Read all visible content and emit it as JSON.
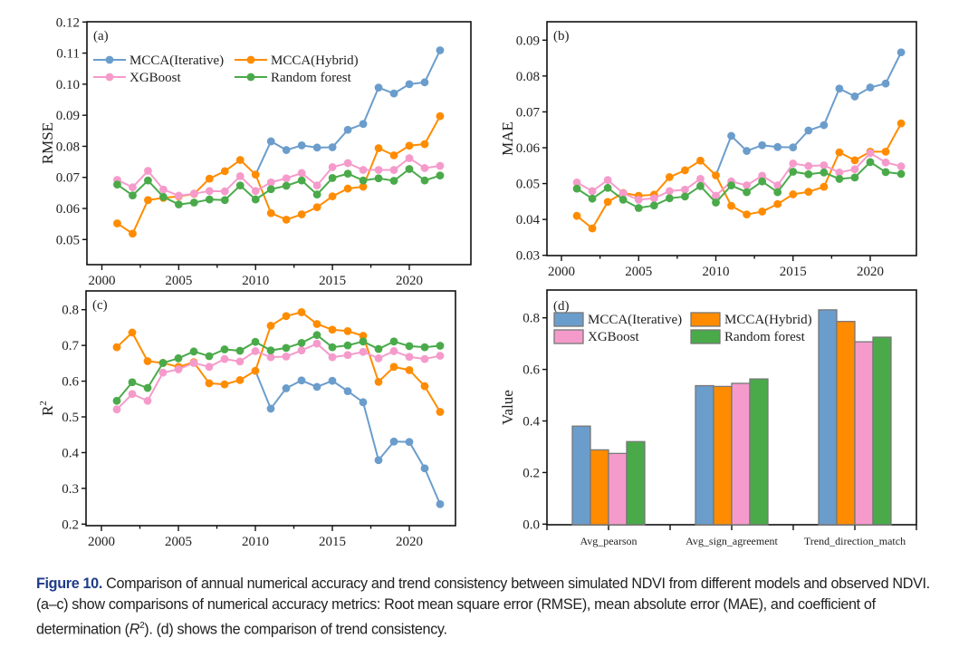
{
  "colors": {
    "MCCA(Iterative)": "#6b9dcc",
    "MCCA(Hybrid)": "#ff8c00",
    "XGBoost": "#f59bcb",
    "Random forest": "#4aaa4a"
  },
  "legend_order": [
    "MCCA(Iterative)",
    "MCCA(Hybrid)",
    "XGBoost",
    "Random forest"
  ],
  "caption": {
    "label": "Figure 10.",
    "text_1": " Comparison of annual numerical accuracy and trend consistency between simulated NDVI from different models and observed NDVI. (a–c) show comparisons of numerical accuracy metrics: Root mean square error (RMSE), mean absolute error (MAE), and coefficient of determination (",
    "r_symbol": "R",
    "r_sup": "2",
    "text_2": "). (d) shows the comparison of trend consistency."
  },
  "chart_data": [
    {
      "panel": "(a)",
      "type": "line",
      "title": "",
      "xlabel": "",
      "ylabel": "RMSE",
      "x": [
        2001,
        2002,
        2003,
        2004,
        2005,
        2006,
        2007,
        2008,
        2009,
        2010,
        2011,
        2012,
        2013,
        2014,
        2015,
        2016,
        2017,
        2018,
        2019,
        2020,
        2021,
        2022
      ],
      "xticks": [
        2000,
        2005,
        2010,
        2015,
        2020
      ],
      "xlim": [
        1999,
        2023.2
      ],
      "ylim": [
        0.045,
        0.12
      ],
      "yticks": [
        0.05,
        0.06,
        0.07,
        0.08,
        0.09,
        0.1,
        0.11,
        0.12
      ],
      "ytick_labels": [
        "0.05",
        "0.06",
        "0.07",
        "0.08",
        "0.09",
        "0.10",
        "0.11",
        "0.12"
      ],
      "legend": "top-left",
      "grid": false,
      "series": [
        {
          "name": "MCCA(Iterative)",
          "values": [
            0.0552,
            0.0519,
            0.0627,
            0.0634,
            0.0639,
            0.0647,
            0.0696,
            0.072,
            0.0756,
            0.0709,
            0.0816,
            0.0788,
            0.0803,
            0.0796,
            0.0797,
            0.0853,
            0.0872,
            0.0989,
            0.097,
            0.1,
            0.1006,
            0.1109
          ]
        },
        {
          "name": "MCCA(Hybrid)",
          "values": [
            0.0552,
            0.0519,
            0.0627,
            0.0634,
            0.0639,
            0.0647,
            0.0696,
            0.072,
            0.0756,
            0.0709,
            0.0585,
            0.0564,
            0.0581,
            0.0604,
            0.0639,
            0.0664,
            0.067,
            0.0794,
            0.0771,
            0.0802,
            0.0807,
            0.0897
          ]
        },
        {
          "name": "XGBoost",
          "values": [
            0.0692,
            0.0668,
            0.0721,
            0.0661,
            0.0641,
            0.0648,
            0.0656,
            0.0655,
            0.0704,
            0.0656,
            0.0684,
            0.0697,
            0.0714,
            0.0674,
            0.0733,
            0.0746,
            0.0724,
            0.0724,
            0.0724,
            0.0762,
            0.073,
            0.0737
          ]
        },
        {
          "name": "Random forest",
          "values": [
            0.0677,
            0.0642,
            0.069,
            0.0637,
            0.0613,
            0.0619,
            0.0629,
            0.0627,
            0.0674,
            0.0629,
            0.0662,
            0.0673,
            0.069,
            0.0645,
            0.0698,
            0.0712,
            0.069,
            0.0697,
            0.0689,
            0.0727,
            0.069,
            0.0706
          ]
        }
      ]
    },
    {
      "panel": "(b)",
      "type": "line",
      "title": "",
      "xlabel": "",
      "ylabel": "MAE",
      "x": [
        2001,
        2002,
        2003,
        2004,
        2005,
        2006,
        2007,
        2008,
        2009,
        2010,
        2011,
        2012,
        2013,
        2014,
        2015,
        2016,
        2017,
        2018,
        2019,
        2020,
        2021,
        2022
      ],
      "xticks": [
        2000,
        2005,
        2010,
        2015,
        2020
      ],
      "xlim": [
        1999,
        2023.2
      ],
      "ylim": [
        0.03,
        0.095
      ],
      "yticks": [
        0.03,
        0.04,
        0.05,
        0.06,
        0.07,
        0.08,
        0.09
      ],
      "ytick_labels": [
        "0.03",
        "0.04",
        "0.05",
        "0.06",
        "0.07",
        "0.08",
        "0.09"
      ],
      "legend": "none",
      "grid": false,
      "series": [
        {
          "name": "MCCA(Iterative)",
          "values": [
            0.041,
            0.0375,
            0.0449,
            0.0474,
            0.0466,
            0.0469,
            0.0518,
            0.0537,
            0.0564,
            0.0523,
            0.0633,
            0.0591,
            0.0607,
            0.0602,
            0.0601,
            0.0648,
            0.0663,
            0.0765,
            0.0743,
            0.0768,
            0.0779,
            0.0866
          ]
        },
        {
          "name": "MCCA(Hybrid)",
          "values": [
            0.041,
            0.0375,
            0.0449,
            0.0474,
            0.0466,
            0.0469,
            0.0518,
            0.0537,
            0.0564,
            0.0523,
            0.0438,
            0.0414,
            0.0422,
            0.0443,
            0.047,
            0.0477,
            0.0491,
            0.0587,
            0.0565,
            0.0589,
            0.0589,
            0.0668
          ]
        },
        {
          "name": "XGBoost",
          "values": [
            0.0503,
            0.0479,
            0.051,
            0.0473,
            0.0455,
            0.0459,
            0.0479,
            0.0483,
            0.0513,
            0.0466,
            0.0506,
            0.0495,
            0.0522,
            0.0495,
            0.0556,
            0.0549,
            0.0551,
            0.0531,
            0.054,
            0.0585,
            0.0559,
            0.0548
          ]
        },
        {
          "name": "Random forest",
          "values": [
            0.0486,
            0.0458,
            0.0488,
            0.0455,
            0.0432,
            0.0439,
            0.0459,
            0.0464,
            0.0493,
            0.0447,
            0.0495,
            0.0476,
            0.0506,
            0.0476,
            0.0533,
            0.0526,
            0.0531,
            0.0513,
            0.0517,
            0.056,
            0.0532,
            0.0527
          ]
        }
      ]
    },
    {
      "panel": "(c)",
      "type": "line",
      "title": "",
      "xlabel": "",
      "ylabel": "R2",
      "x": [
        2001,
        2002,
        2003,
        2004,
        2005,
        2006,
        2007,
        2008,
        2009,
        2010,
        2011,
        2012,
        2013,
        2014,
        2015,
        2016,
        2017,
        2018,
        2019,
        2020,
        2021,
        2022
      ],
      "xticks": [
        2000,
        2005,
        2010,
        2015,
        2020
      ],
      "xlim": [
        1999,
        2023.2
      ],
      "ylim": [
        0.2,
        0.85
      ],
      "yticks": [
        0.2,
        0.3,
        0.4,
        0.5,
        0.6,
        0.7,
        0.8
      ],
      "ytick_labels": [
        "0.2",
        "0.3",
        "0.4",
        "0.5",
        "0.6",
        "0.7",
        "0.8"
      ],
      "legend": "none",
      "grid": false,
      "series": [
        {
          "name": "MCCA(Iterative)",
          "values": [
            0.695,
            0.736,
            0.656,
            0.651,
            0.64,
            0.653,
            0.594,
            0.591,
            0.603,
            0.629,
            0.523,
            0.58,
            0.602,
            0.584,
            0.601,
            0.572,
            0.541,
            0.379,
            0.431,
            0.43,
            0.356,
            0.256
          ]
        },
        {
          "name": "MCCA(Hybrid)",
          "values": [
            0.695,
            0.736,
            0.656,
            0.651,
            0.64,
            0.653,
            0.594,
            0.591,
            0.603,
            0.629,
            0.755,
            0.782,
            0.793,
            0.76,
            0.744,
            0.74,
            0.727,
            0.598,
            0.64,
            0.631,
            0.586,
            0.514
          ]
        },
        {
          "name": "XGBoost",
          "values": [
            0.521,
            0.564,
            0.545,
            0.624,
            0.633,
            0.651,
            0.64,
            0.662,
            0.655,
            0.684,
            0.667,
            0.669,
            0.686,
            0.705,
            0.667,
            0.673,
            0.682,
            0.664,
            0.684,
            0.668,
            0.662,
            0.671
          ]
        },
        {
          "name": "Random forest",
          "values": [
            0.545,
            0.597,
            0.581,
            0.651,
            0.664,
            0.683,
            0.67,
            0.689,
            0.685,
            0.71,
            0.686,
            0.693,
            0.707,
            0.729,
            0.695,
            0.7,
            0.711,
            0.69,
            0.711,
            0.698,
            0.695,
            0.699
          ]
        }
      ]
    },
    {
      "panel": "(d)",
      "type": "bar",
      "title": "",
      "xlabel": "",
      "ylabel": "Value",
      "categories": [
        "Avg_pearson",
        "Avg_sign_agreement",
        "Trend_direction_match"
      ],
      "ylim": [
        0.0,
        0.9
      ],
      "yticks": [
        0.0,
        0.2,
        0.4,
        0.6,
        0.8
      ],
      "ytick_labels": [
        "0.0",
        "0.2",
        "0.4",
        "0.6",
        "0.8"
      ],
      "legend": "top-left",
      "grid": false,
      "series": [
        {
          "name": "MCCA(Iterative)",
          "values": [
            0.38,
            0.537,
            0.831
          ]
        },
        {
          "name": "MCCA(Hybrid)",
          "values": [
            0.288,
            0.534,
            0.786
          ]
        },
        {
          "name": "XGBoost",
          "values": [
            0.274,
            0.546,
            0.707
          ]
        },
        {
          "name": "Random forest",
          "values": [
            0.32,
            0.563,
            0.725
          ]
        }
      ]
    }
  ]
}
